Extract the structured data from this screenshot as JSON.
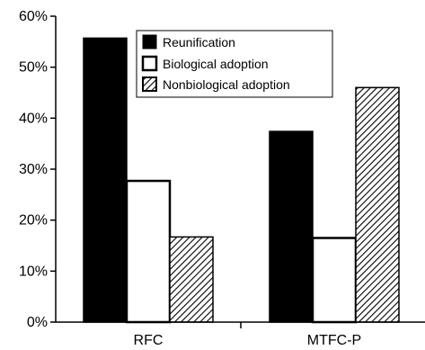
{
  "chart_data": {
    "type": "bar",
    "categories": [
      "RFC",
      "MTFC-P"
    ],
    "series": [
      {
        "name": "Reunification",
        "values": [
          55.7,
          37.4
        ],
        "fill": "#000000",
        "pattern": "solid"
      },
      {
        "name": "Biological adoption",
        "values": [
          27.7,
          16.5
        ],
        "fill": "#ffffff",
        "pattern": "open"
      },
      {
        "name": "Nonbiological adoption",
        "values": [
          16.7,
          46.0
        ],
        "fill": "#ffffff",
        "pattern": "hatch"
      }
    ],
    "y_ticks": [
      "0%",
      "10%",
      "20%",
      "30%",
      "40%",
      "50%",
      "60%"
    ],
    "ylim": [
      0,
      60
    ],
    "title": "",
    "xlabel": "",
    "ylabel": "",
    "legend_position": "top-center",
    "grid": false
  }
}
